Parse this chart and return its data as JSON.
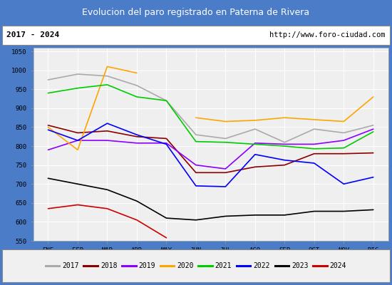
{
  "title": "Evolucion del paro registrado en Paterna de Rivera",
  "subtitle_left": "2017 - 2024",
  "subtitle_right": "http://www.foro-ciudad.com",
  "months": [
    "ENE",
    "FEB",
    "MAR",
    "ABR",
    "MAY",
    "JUN",
    "JUL",
    "AGO",
    "SEP",
    "OCT",
    "NOV",
    "DIC"
  ],
  "ylim": [
    550,
    1060
  ],
  "yticks": [
    550,
    600,
    650,
    700,
    750,
    800,
    850,
    900,
    950,
    1000,
    1050
  ],
  "series_order": [
    "2017",
    "2018",
    "2019",
    "2020",
    "2021",
    "2022",
    "2023",
    "2024"
  ],
  "series": {
    "2017": {
      "color": "#aaaaaa",
      "values": [
        975,
        990,
        985,
        960,
        920,
        830,
        820,
        845,
        810,
        845,
        835,
        855
      ]
    },
    "2018": {
      "color": "#8b0000",
      "values": [
        855,
        835,
        840,
        825,
        820,
        730,
        730,
        745,
        750,
        780,
        780,
        782
      ]
    },
    "2019": {
      "color": "#8b00ff",
      "values": [
        790,
        815,
        815,
        808,
        808,
        750,
        740,
        808,
        805,
        805,
        815,
        845
      ]
    },
    "2020": {
      "color": "#ffa500",
      "values": [
        850,
        790,
        1010,
        993,
        null,
        875,
        865,
        868,
        875,
        870,
        865,
        930
      ]
    },
    "2021": {
      "color": "#00cc00",
      "values": [
        940,
        953,
        962,
        930,
        920,
        812,
        810,
        805,
        800,
        793,
        795,
        838
      ]
    },
    "2022": {
      "color": "#0000ff",
      "values": [
        843,
        815,
        860,
        830,
        805,
        695,
        693,
        778,
        763,
        755,
        700,
        718
      ]
    },
    "2023": {
      "color": "#000000",
      "values": [
        715,
        700,
        685,
        655,
        610,
        605,
        615,
        618,
        618,
        628,
        628,
        632
      ]
    },
    "2024": {
      "color": "#cc0000",
      "values": [
        635,
        645,
        635,
        605,
        558,
        null,
        null,
        null,
        null,
        null,
        null,
        null
      ]
    }
  },
  "title_bg_color": "#4b7cc8",
  "title_text_color": "#ffffff",
  "header_bg_color": "#ffffff",
  "plot_bg_color": "#efefef",
  "grid_color": "#ffffff",
  "outer_bg_color": "#4b7cc8",
  "legend_bg_color": "#f0f0f0",
  "border_color": "#888888"
}
